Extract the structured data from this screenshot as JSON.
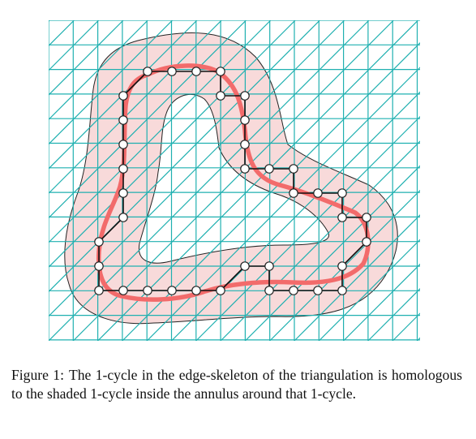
{
  "figure": {
    "caption_label": "Figure 1:",
    "caption_text": "The 1-cycle in the edge-skeleton of the triangulation is homologous to the shaded 1-cycle inside the annulus around that 1-cycle.",
    "colors": {
      "grid": "#1fb0b0",
      "annulus_fill": "#f8dada",
      "annulus_outline": "#222222",
      "skeleton_cycle": "#111111",
      "shaded_cycle": "#f26b6b",
      "vertex_fill": "#ffffff",
      "vertex_outline": "#222222",
      "background": "#ffffff"
    }
  }
}
